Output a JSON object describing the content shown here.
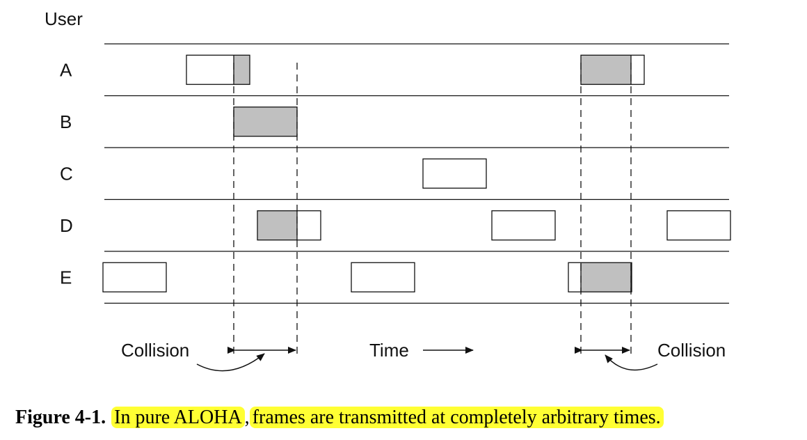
{
  "user_header": "User",
  "users": [
    {
      "label": "A",
      "frames": [
        {
          "start": 268,
          "collided": true,
          "hit_start": 336,
          "hit_end": 359
        },
        {
          "start": 835,
          "collided": true,
          "hit_start": 835,
          "hit_end": 907
        }
      ]
    },
    {
      "label": "B",
      "frames": [
        {
          "start": 336,
          "collided": true,
          "hit_start": 336,
          "hit_end": 427
        }
      ]
    },
    {
      "label": "C",
      "frames": [
        {
          "start": 608,
          "collided": false
        }
      ]
    },
    {
      "label": "D",
      "frames": [
        {
          "start": 370,
          "collided": true,
          "hit_start": 370,
          "hit_end": 427
        },
        {
          "start": 707,
          "collided": false
        },
        {
          "start": 959,
          "collided": false
        }
      ]
    },
    {
      "label": "E",
      "frames": [
        {
          "start": 148,
          "collided": false
        },
        {
          "start": 505,
          "collided": false
        },
        {
          "start": 817,
          "collided": true,
          "hit_start": 835,
          "hit_end": 907
        }
      ]
    }
  ],
  "frame_length": 91,
  "collision_bounds": [
    336,
    427,
    835,
    907
  ],
  "annotations": {
    "collision_left": "Collision",
    "collision_right": "Collision",
    "time": "Time"
  },
  "caption": {
    "number": "Figure 4-1.",
    "part1": "In pure ALOHA",
    "sep": ",",
    "part2": "frames are transmitted at completely arbitrary times."
  },
  "colors": {
    "collided_fill": "#c0c0c0",
    "highlight": "#ffff33"
  }
}
